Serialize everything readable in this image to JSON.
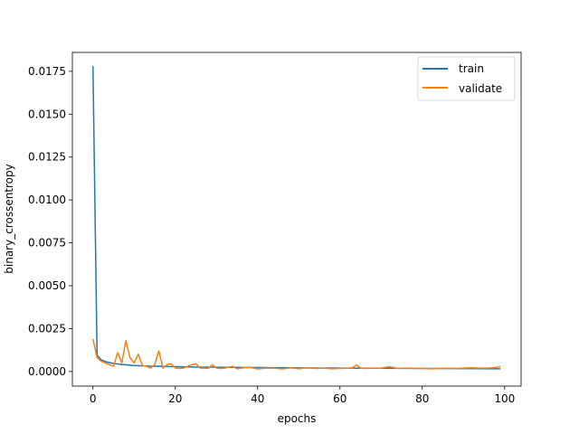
{
  "chart_data": {
    "type": "line",
    "title": "",
    "xlabel": "epochs",
    "ylabel": "binary_crossentropy",
    "xlim": [
      -5,
      104
    ],
    "ylim": [
      -0.00085,
      0.0186
    ],
    "xticks": [
      0,
      20,
      40,
      60,
      80,
      100
    ],
    "xtick_labels": [
      "0",
      "20",
      "40",
      "60",
      "80",
      "100"
    ],
    "yticks": [
      0.0,
      0.0025,
      0.005,
      0.0075,
      0.01,
      0.0125,
      0.015,
      0.0175
    ],
    "ytick_labels": [
      "0.0000",
      "0.0025",
      "0.0050",
      "0.0075",
      "0.0100",
      "0.0125",
      "0.0150",
      "0.0175"
    ],
    "grid": false,
    "legend_position": "upper right",
    "series": [
      {
        "name": "train",
        "color": "#1f77b4",
        "x": [
          0,
          1,
          2,
          3,
          4,
          5,
          6,
          7,
          8,
          9,
          10,
          12,
          14,
          16,
          18,
          20,
          25,
          30,
          35,
          40,
          50,
          60,
          70,
          80,
          90,
          99
        ],
        "values": [
          0.0178,
          0.00095,
          0.00068,
          0.00058,
          0.00052,
          0.00047,
          0.00044,
          0.00041,
          0.00039,
          0.00037,
          0.00035,
          0.00033,
          0.00031,
          0.0003,
          0.00029,
          0.00028,
          0.00026,
          0.00025,
          0.00024,
          0.00023,
          0.00021,
          0.0002,
          0.00019,
          0.00018,
          0.00017,
          0.00016
        ]
      },
      {
        "name": "validate",
        "color": "#ff7f0e",
        "x": [
          0,
          1,
          2,
          3,
          4,
          5,
          6,
          7,
          8,
          9,
          10,
          11,
          12,
          13,
          14,
          15,
          16,
          17,
          18,
          19,
          20,
          21,
          22,
          23,
          24,
          25,
          26,
          27,
          28,
          29,
          30,
          31,
          32,
          33,
          34,
          35,
          36,
          38,
          40,
          42,
          44,
          46,
          48,
          50,
          52,
          54,
          56,
          58,
          60,
          62,
          63,
          64,
          65,
          66,
          68,
          70,
          72,
          74,
          76,
          78,
          80,
          82,
          84,
          86,
          88,
          90,
          92,
          94,
          96,
          98,
          99
        ],
        "values": [
          0.0019,
          0.0008,
          0.0006,
          0.0005,
          0.0004,
          0.0003,
          0.0011,
          0.0005,
          0.0018,
          0.0008,
          0.0005,
          0.001,
          0.00035,
          0.0003,
          0.0002,
          0.0004,
          0.0012,
          0.0002,
          0.0004,
          0.00045,
          0.0002,
          0.00018,
          0.0002,
          0.0003,
          0.0004,
          0.00045,
          0.0002,
          0.0002,
          0.00018,
          0.0004,
          0.0002,
          0.00018,
          0.0002,
          0.00025,
          0.0003,
          0.00015,
          0.0002,
          0.00025,
          0.00015,
          0.0002,
          0.0002,
          0.00015,
          0.00022,
          0.00016,
          0.00022,
          0.00018,
          0.0002,
          0.00016,
          0.00018,
          0.0002,
          0.00022,
          0.00038,
          0.0002,
          0.00018,
          0.0002,
          0.0002,
          0.00028,
          0.00018,
          0.0002,
          0.00018,
          0.00018,
          0.00016,
          0.00018,
          0.00019,
          0.00018,
          0.0002,
          0.00022,
          0.0002,
          0.0002,
          0.00024,
          0.0003
        ]
      }
    ]
  }
}
